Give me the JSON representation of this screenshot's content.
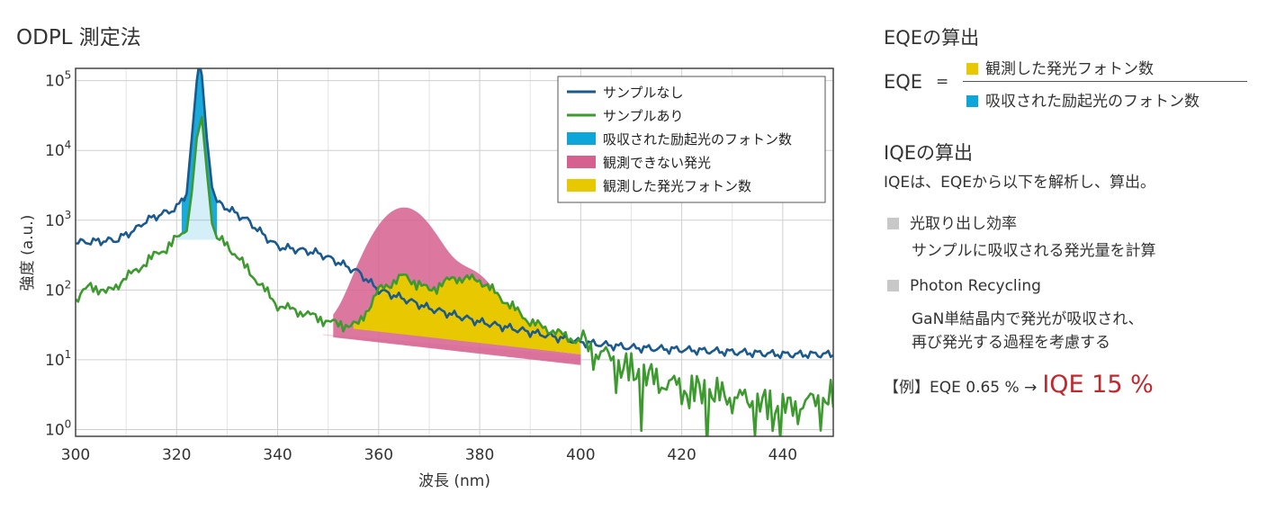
{
  "chart_data": {
    "type": "line",
    "title": "ODPL 測定法",
    "xlabel": "波長 (nm)",
    "ylabel": "強度 (a.u.)",
    "xlim": [
      300,
      450
    ],
    "ylim": [
      0.8,
      150000
    ],
    "yscale": "log",
    "x_ticks": [
      300,
      320,
      340,
      360,
      380,
      400,
      420,
      440
    ],
    "y_ticks": [
      {
        "value": 1,
        "base": "10",
        "exp": "0"
      },
      {
        "value": 10,
        "base": "10",
        "exp": "1"
      },
      {
        "value": 100,
        "base": "10",
        "exp": "2"
      },
      {
        "value": 1000,
        "base": "10",
        "exp": "3"
      },
      {
        "value": 10000,
        "base": "10",
        "exp": "4"
      },
      {
        "value": 100000,
        "base": "10",
        "exp": "5"
      }
    ],
    "grid": true,
    "legend_position": "top-right",
    "series": [
      {
        "name": "サンプルなし",
        "color": "#1b5a8e",
        "x": [
          300,
          304,
          308,
          312,
          314,
          316,
          318,
          320,
          322,
          323,
          324,
          324.5,
          325,
          326,
          327,
          328,
          330,
          334,
          338,
          340,
          344,
          348,
          352,
          356,
          360,
          365,
          370,
          380,
          390,
          400,
          410,
          420,
          430,
          440,
          450
        ],
        "y": [
          480,
          500,
          520,
          750,
          1000,
          1150,
          1300,
          1500,
          2500,
          15000,
          100000,
          180000,
          120000,
          15000,
          3000,
          1800,
          1500,
          1000,
          550,
          420,
          380,
          340,
          250,
          180,
          100,
          75,
          55,
          35,
          25,
          18,
          15,
          14,
          13,
          12,
          12
        ]
      },
      {
        "name": "サンプルあり",
        "color": "#3d9a2f",
        "x": [
          300,
          303,
          306,
          310,
          314,
          316,
          318,
          320,
          322,
          323,
          324,
          325,
          326,
          327,
          328,
          330,
          334,
          338,
          340,
          344,
          348,
          352,
          356,
          360,
          365,
          370,
          375,
          380,
          385,
          390,
          400,
          410,
          420,
          430,
          440,
          450
        ],
        "y": [
          70,
          120,
          90,
          150,
          250,
          330,
          400,
          550,
          700,
          2500,
          15000,
          30000,
          5000,
          900,
          550,
          450,
          200,
          90,
          60,
          50,
          40,
          32,
          32,
          100,
          160,
          100,
          150,
          140,
          70,
          35,
          18,
          7,
          4,
          3,
          2,
          3
        ]
      }
    ],
    "areas": [
      {
        "name": "吸収された励起光のフォトン数",
        "color": "#0ea5d9"
      },
      {
        "name": "観測できない発光",
        "color": "#d6608f"
      },
      {
        "name": "観測した発光フォトン数",
        "color": "#e8c800"
      }
    ]
  },
  "right_panel": {
    "eqe_heading": "EQEの算出",
    "eqe_label": "EQE",
    "eqe_equals": "=",
    "numerator": "観測した発光フォトン数",
    "denominator": "吸収された励起光のフォトン数",
    "numerator_color": "#e8c800",
    "denominator_color": "#0ea5d9",
    "iqe_heading": "IQEの算出",
    "iqe_desc": "IQEは、EQEから以下を解析し、算出。",
    "bullet1_title": "光取り出し効率",
    "bullet1_desc": "サンプルに吸収される発光量を計算",
    "bullet2_title": "Photon Recycling",
    "bullet2_desc1": "GaN単結晶内で発光が吸収され、",
    "bullet2_desc2": "再び発光する過程を考慮する",
    "example_prefix": "【例】EQE 0.65 % →",
    "example_result": "IQE 15 %",
    "example_result_color": "#c1272d"
  }
}
